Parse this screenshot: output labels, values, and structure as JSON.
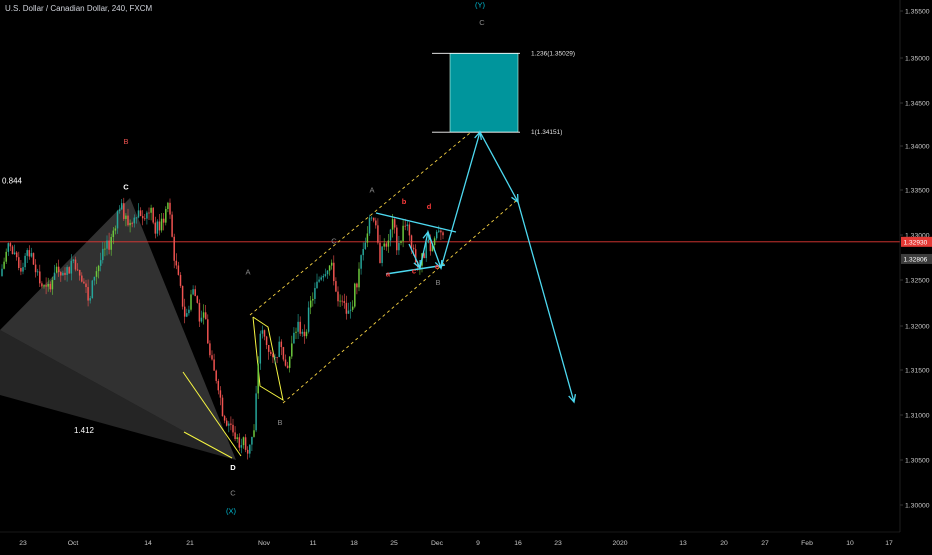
{
  "symbol_title": "U.S. Dollar / Canadian Dollar, 240, FXCM",
  "colors": {
    "background": "#000000",
    "axis_text": "#c8c8c8",
    "up_candle": "#26a69a",
    "up_candle_bright": "#6cc83c",
    "down_candle": "#ef5350",
    "price_line": "#e53935",
    "wave_label_grey": "#8a8a8a",
    "wave_label_red": "#ff3b3b",
    "wave_label_cyan": "#00bcd4",
    "projection": "#4dd9f0",
    "target_box": "#00959c",
    "channel": "#f5d142",
    "wedge": "#f5f542",
    "harmonic_fill": "#595959"
  },
  "chart_data": {
    "type": "candlestick",
    "title": "U.S. Dollar / Canadian Dollar, 240, FXCM",
    "y_axis": {
      "ticks": [
        "1.35500",
        "1.35000",
        "1.34500",
        "1.34000",
        "1.33500",
        "1.33000",
        "1.32500",
        "1.32000",
        "1.31500",
        "1.31000",
        "1.30500",
        "1.30000"
      ],
      "ylim": [
        1.2993,
        1.356
      ]
    },
    "x_axis": {
      "ticks": [
        "23",
        "Oct",
        "14",
        "21",
        "Nov",
        "11",
        "18",
        "25",
        "Dec",
        "9",
        "16",
        "23",
        "2020",
        "13",
        "20",
        "27",
        "Feb",
        "10",
        "17"
      ]
    },
    "price_labels": [
      {
        "text": "1.32930",
        "price": 1.3293,
        "color": "#e53935"
      },
      {
        "text": "1.32806",
        "price": 1.32806,
        "color": "#3c3c3c"
      }
    ],
    "series_path": [
      [
        0,
        1.3255
      ],
      [
        4,
        1.329
      ],
      [
        9,
        1.3262
      ],
      [
        14,
        1.3282
      ],
      [
        18,
        1.325
      ],
      [
        22,
        1.3236
      ],
      [
        26,
        1.3266
      ],
      [
        30,
        1.325
      ],
      [
        34,
        1.3275
      ],
      [
        38,
        1.3258
      ],
      [
        42,
        1.3224
      ],
      [
        44,
        1.3256
      ],
      [
        48,
        1.3277
      ],
      [
        52,
        1.3295
      ],
      [
        56,
        1.3334
      ],
      [
        60,
        1.3313
      ],
      [
        64,
        1.3328
      ],
      [
        67,
        1.3325
      ],
      [
        70,
        1.333
      ],
      [
        73,
        1.3306
      ],
      [
        76,
        1.3315
      ],
      [
        79,
        1.3338
      ],
      [
        80,
        1.3309
      ],
      [
        82,
        1.327
      ],
      [
        84,
        1.3245
      ],
      [
        87,
        1.3206
      ],
      [
        90,
        1.324
      ],
      [
        92,
        1.323
      ],
      [
        94,
        1.3198
      ],
      [
        96,
        1.3214
      ],
      [
        98,
        1.3168
      ],
      [
        100,
        1.3148
      ],
      [
        102,
        1.3139
      ],
      [
        104,
        1.3107
      ],
      [
        106,
        1.3095
      ],
      [
        108,
        1.309
      ],
      [
        110,
        1.3078
      ],
      [
        112,
        1.307
      ],
      [
        114,
        1.3072
      ],
      [
        116,
        1.3065
      ],
      [
        118,
        1.3075
      ],
      [
        119,
        1.308
      ],
      [
        121,
        1.3161
      ],
      [
        122,
        1.3194
      ],
      [
        124,
        1.3185
      ],
      [
        126,
        1.3174
      ],
      [
        128,
        1.3156
      ],
      [
        130,
        1.3172
      ],
      [
        132,
        1.3182
      ],
      [
        134,
        1.315
      ],
      [
        136,
        1.3168
      ],
      [
        138,
        1.3193
      ],
      [
        140,
        1.3201
      ],
      [
        142,
        1.3185
      ],
      [
        144,
        1.3205
      ],
      [
        146,
        1.323
      ],
      [
        148,
        1.324
      ],
      [
        150,
        1.3256
      ],
      [
        152,
        1.3262
      ],
      [
        154,
        1.3268
      ],
      [
        156,
        1.326
      ],
      [
        158,
        1.3233
      ],
      [
        160,
        1.3232
      ],
      [
        162,
        1.3215
      ],
      [
        164,
        1.3212
      ],
      [
        166,
        1.3238
      ],
      [
        168,
        1.3255
      ],
      [
        170,
        1.329
      ],
      [
        172,
        1.3302
      ],
      [
        174,
        1.3327
      ],
      [
        176,
        1.3305
      ],
      [
        178,
        1.3275
      ],
      [
        180,
        1.329
      ],
      [
        182,
        1.3296
      ],
      [
        184,
        1.3312
      ],
      [
        186,
        1.329
      ],
      [
        188,
        1.33
      ],
      [
        190,
        1.3318
      ],
      [
        192,
        1.3292
      ],
      [
        194,
        1.3276
      ],
      [
        196,
        1.3264
      ],
      [
        198,
        1.3275
      ],
      [
        200,
        1.329
      ],
      [
        202,
        1.3285
      ],
      [
        204,
        1.33
      ],
      [
        206,
        1.3312
      ],
      [
        208,
        1.3298
      ]
    ],
    "annotations": [
      {
        "text": "0.844",
        "x": 12,
        "price": 1.3358,
        "color": "#ffffff"
      },
      {
        "text": "1.412",
        "x": 84,
        "price": 1.30802,
        "color": "#ffffff"
      },
      {
        "text": "C",
        "x": 126,
        "price": 1.33514,
        "color": "#ffffff"
      },
      {
        "text": "B",
        "x": 126,
        "price": 1.34022,
        "color": "#ef5350"
      },
      {
        "text": "D",
        "x": 233,
        "price": 1.30389,
        "color": "#ffffff"
      },
      {
        "text": "C",
        "x": 233,
        "price": 1.30108,
        "color": "#8a8a8a"
      },
      {
        "text": "(X)",
        "x": 231,
        "price": 1.29903,
        "color": "#00bcd4"
      },
      {
        "text": "A",
        "x": 248,
        "price": 1.32568,
        "color": "#8a8a8a"
      },
      {
        "text": "B",
        "x": 280,
        "price": 1.30888,
        "color": "#8a8a8a"
      },
      {
        "text": "C",
        "x": 334,
        "price": 1.32914,
        "color": "#8a8a8a"
      },
      {
        "text": "A",
        "x": 372,
        "price": 1.33479,
        "color": "#8a8a8a"
      },
      {
        "text": "b",
        "x": 404,
        "price": 1.3335,
        "color": "#ff3b3b"
      },
      {
        "text": "d",
        "x": 429,
        "price": 1.33294,
        "color": "#ff3b3b"
      },
      {
        "text": "a",
        "x": 388,
        "price": 1.32546,
        "color": "#ff3b3b"
      },
      {
        "text": "c",
        "x": 414,
        "price": 1.32579,
        "color": "#ff3b3b"
      },
      {
        "text": "e",
        "x": 437,
        "price": 1.32627,
        "color": "#ff3b3b"
      },
      {
        "text": "B",
        "x": 438,
        "price": 1.32449,
        "color": "#8a8a8a"
      },
      {
        "text": "(Y)",
        "x": 480,
        "price": 1.3554,
        "color": "#00bcd4"
      },
      {
        "text": "C",
        "x": 482,
        "price": 1.35346,
        "color": "#8a8a8a"
      }
    ],
    "fib_box": {
      "top_label": "1.236(1.35029)",
      "bottom_label": "1(1.34151)",
      "top_price": 1.35029,
      "bottom_price": 1.34151
    },
    "grid": false,
    "legend": "none"
  }
}
